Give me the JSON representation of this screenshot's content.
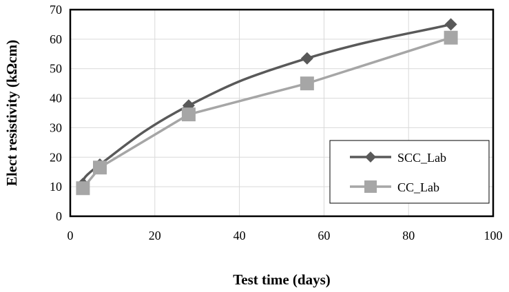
{
  "chart_data": {
    "type": "line",
    "xlabel": "Test time (days)",
    "ylabel": "Elect resistivity (kΩcm)",
    "xlim": [
      0,
      100
    ],
    "ylim": [
      0,
      70
    ],
    "xticks": [
      0,
      20,
      40,
      60,
      80,
      100
    ],
    "yticks": [
      0,
      10,
      20,
      30,
      40,
      50,
      60,
      70
    ],
    "grid": true,
    "legend_position": "lower-right",
    "series": [
      {
        "name": "SCC_Lab",
        "color": "#595959",
        "marker": "diamond",
        "smooth": true,
        "x": [
          3,
          7,
          28,
          56,
          90
        ],
        "y": [
          11,
          17.5,
          37.5,
          53.5,
          65
        ]
      },
      {
        "name": "CC_Lab",
        "color": "#a6a6a6",
        "marker": "square",
        "smooth": false,
        "x": [
          3,
          7,
          28,
          56,
          90
        ],
        "y": [
          9.5,
          16.5,
          34.5,
          45,
          60.5
        ]
      }
    ]
  }
}
